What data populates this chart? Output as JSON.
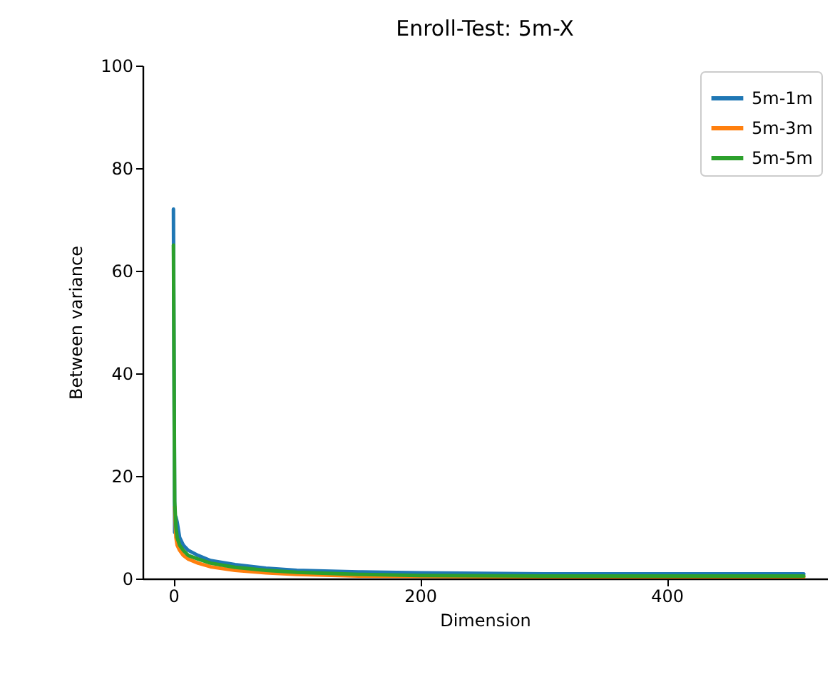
{
  "chart_data": {
    "type": "line",
    "title": "Enroll-Test: 5m-X",
    "xlabel": "Dimension",
    "ylabel": "Between variance",
    "x": [
      0,
      1,
      2,
      3,
      5,
      8,
      12,
      20,
      30,
      50,
      75,
      100,
      150,
      200,
      300,
      400,
      511
    ],
    "series": [
      {
        "name": "5m-1m",
        "color": "#1f77b4",
        "values": [
          72,
          9,
          12,
          11,
          8,
          6.5,
          5.5,
          4.5,
          3.5,
          2.7,
          2.0,
          1.6,
          1.3,
          1.1,
          0.9,
          0.9,
          0.9
        ]
      },
      {
        "name": "5m-3m",
        "color": "#ff7f0e",
        "values": [
          null,
          14,
          8,
          6.5,
          5.5,
          4.5,
          3.8,
          3,
          2.3,
          1.6,
          1.1,
          0.8,
          0.5,
          0.4,
          0.3,
          0.3,
          0.3
        ]
      },
      {
        "name": "5m-5m",
        "color": "#2ca02c",
        "values": [
          65,
          15,
          10,
          8,
          6.5,
          5.5,
          4.5,
          3.8,
          3,
          2.2,
          1.6,
          1.2,
          0.8,
          0.6,
          0.5,
          0.5,
          0.5
        ]
      }
    ],
    "xlim": [
      -25,
      530
    ],
    "xticks": [
      0,
      200,
      400
    ],
    "ylim": [
      0,
      100
    ],
    "yticks": [
      0,
      20,
      40,
      60,
      80,
      100
    ],
    "legend": "top right",
    "grid": false
  }
}
